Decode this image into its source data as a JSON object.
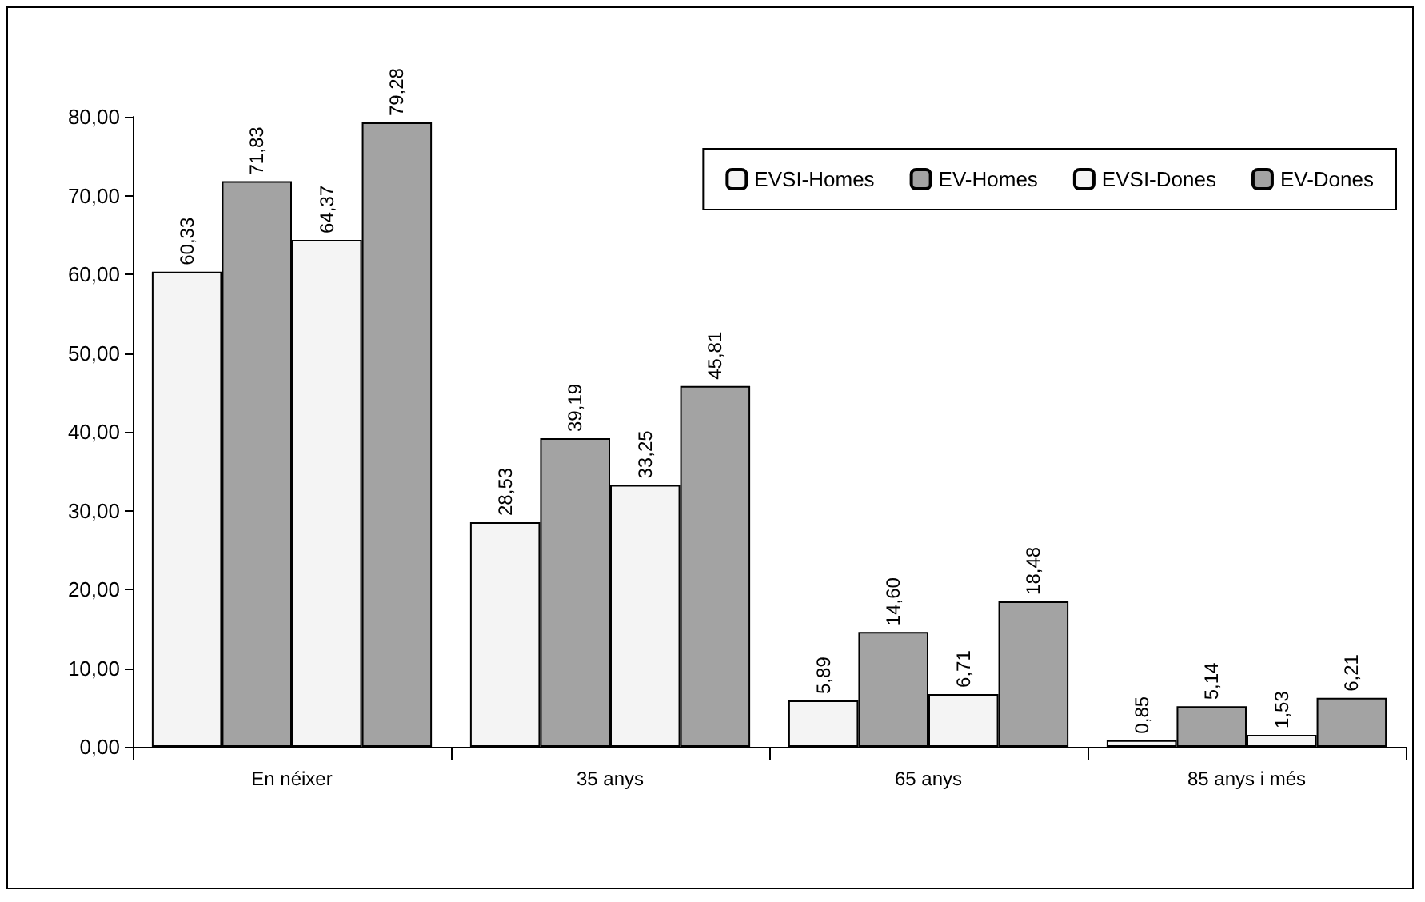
{
  "chart_data": {
    "type": "bar",
    "categories": [
      "En néixer",
      "35 anys",
      "65 anys",
      "85 anys i més"
    ],
    "series": [
      {
        "name": "EVSI-Homes",
        "color": "#f4f4f4",
        "values": [
          60.33,
          28.53,
          5.89,
          0.85
        ],
        "value_labels": [
          "60,33",
          "28,53",
          "5,89",
          "0,85"
        ]
      },
      {
        "name": "EV-Homes",
        "color": "#a3a3a3",
        "values": [
          71.83,
          39.19,
          14.6,
          5.14
        ],
        "value_labels": [
          "71,83",
          "39,19",
          "14,60",
          "5,14"
        ]
      },
      {
        "name": "EVSI-Dones",
        "color": "#f4f4f4",
        "values": [
          64.37,
          33.25,
          6.71,
          1.53
        ],
        "value_labels": [
          "64,37",
          "33,25",
          "6,71",
          "1,53"
        ]
      },
      {
        "name": "EV-Dones",
        "color": "#a3a3a3",
        "values": [
          79.28,
          45.81,
          18.48,
          6.21
        ],
        "value_labels": [
          "79,28",
          "45,81",
          "18,48",
          "6,21"
        ]
      }
    ],
    "ylim": [
      0,
      80
    ],
    "yticks": [
      {
        "value": 0,
        "label": "0,00"
      },
      {
        "value": 10,
        "label": "10,00"
      },
      {
        "value": 20,
        "label": "20,00"
      },
      {
        "value": 30,
        "label": "30,00"
      },
      {
        "value": 40,
        "label": "40,00"
      },
      {
        "value": 50,
        "label": "50,00"
      },
      {
        "value": 60,
        "label": "60,00"
      },
      {
        "value": 70,
        "label": "70,00"
      },
      {
        "value": 80,
        "label": "80,00"
      }
    ],
    "grid": false,
    "legend": "top right"
  }
}
